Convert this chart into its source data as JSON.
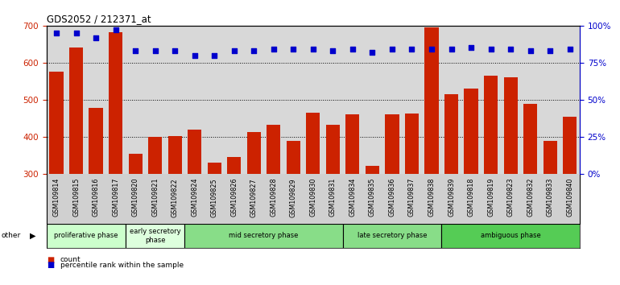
{
  "title": "GDS2052 / 212371_at",
  "samples": [
    "GSM109814",
    "GSM109815",
    "GSM109816",
    "GSM109817",
    "GSM109820",
    "GSM109821",
    "GSM109822",
    "GSM109824",
    "GSM109825",
    "GSM109826",
    "GSM109827",
    "GSM109828",
    "GSM109829",
    "GSM109830",
    "GSM109831",
    "GSM109834",
    "GSM109835",
    "GSM109836",
    "GSM109837",
    "GSM109838",
    "GSM109839",
    "GSM109818",
    "GSM109819",
    "GSM109823",
    "GSM109832",
    "GSM109833",
    "GSM109840"
  ],
  "counts": [
    575,
    640,
    478,
    682,
    355,
    400,
    403,
    420,
    330,
    345,
    412,
    432,
    388,
    465,
    432,
    460,
    322,
    460,
    463,
    695,
    515,
    530,
    565,
    560,
    490,
    390,
    455
  ],
  "percentiles": [
    95,
    95,
    92,
    97,
    83,
    83,
    83,
    80,
    80,
    83,
    83,
    84,
    84,
    84,
    83,
    84,
    82,
    84,
    84,
    84,
    84,
    85,
    84,
    84,
    83,
    83,
    84
  ],
  "phases": [
    {
      "name": "proliferative phase",
      "start": 0,
      "end": 4,
      "color": "#ccffcc"
    },
    {
      "name": "early secretory\nphase",
      "start": 4,
      "end": 7,
      "color": "#ddffdd"
    },
    {
      "name": "mid secretory phase",
      "start": 7,
      "end": 15,
      "color": "#88dd88"
    },
    {
      "name": "late secretory phase",
      "start": 15,
      "end": 20,
      "color": "#88dd88"
    },
    {
      "name": "ambiguous phase",
      "start": 20,
      "end": 27,
      "color": "#55cc55"
    }
  ],
  "ylim_left": [
    300,
    700
  ],
  "ylim_right": [
    0,
    100
  ],
  "yticks_left": [
    300,
    400,
    500,
    600,
    700
  ],
  "yticks_right": [
    0,
    25,
    50,
    75,
    100
  ],
  "bar_color": "#cc2200",
  "marker_color": "#0000cc",
  "plot_bg_color": "#d8d8d8",
  "tick_area_bg": "#d0d0d0",
  "other_label": "other"
}
